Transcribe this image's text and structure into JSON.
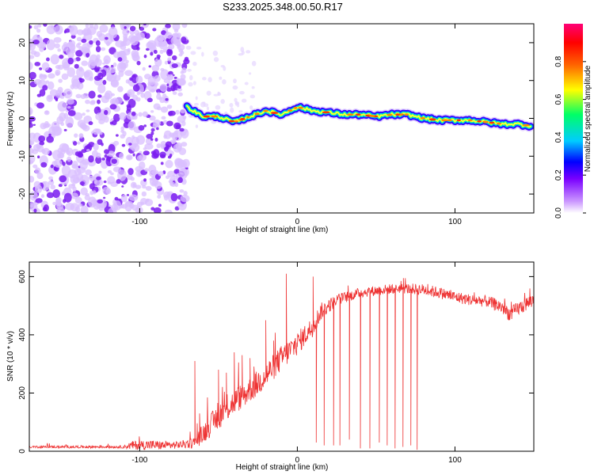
{
  "title": "S233.2025.348.00.50.R17",
  "colors": {
    "signal_line": "#ee3333",
    "scatter": "#7a2ef0",
    "axis": "#000000",
    "colorbar_stops": [
      "#cc99ff",
      "#7a00ff",
      "#0000ff",
      "#00ccff",
      "#00ff66",
      "#ffff00",
      "#ff6600",
      "#ff0000",
      "#ff0077"
    ]
  },
  "chart_data": [
    {
      "type": "heatmap",
      "xlabel": "Height of straight line (km)",
      "ylabel": "Frequency (Hz)",
      "xlim": [
        -170,
        150
      ],
      "ylim": [
        -25,
        25
      ],
      "x_ticks": [
        -100,
        0,
        100
      ],
      "x_tick_labels": [
        "-100",
        "0",
        "100"
      ],
      "y_ticks": [
        -20,
        -10,
        0,
        10,
        20
      ],
      "y_tick_labels": [
        "-20",
        "-10",
        "0",
        "10",
        "20"
      ],
      "noise_region_x": [
        -170,
        -70
      ],
      "ridge": {
        "x": [
          -70,
          -60,
          -50,
          -40,
          -30,
          -20,
          -10,
          0,
          10,
          20,
          30,
          40,
          50,
          60,
          70,
          80,
          90,
          100,
          110,
          120,
          130,
          140,
          148
        ],
        "y": [
          3,
          0.5,
          0.5,
          -1,
          0.5,
          2,
          1,
          3,
          2,
          1.5,
          1,
          1,
          0.5,
          1,
          1,
          0,
          -0.5,
          -0.5,
          -0.5,
          -1,
          -1.5,
          -1.5,
          -2
        ]
      },
      "colorbar": {
        "label": "Normalized spectral amplitude",
        "range": [
          0,
          1
        ],
        "ticks": [
          0.0,
          0.2,
          0.4,
          0.6,
          0.8
        ],
        "tick_labels": [
          "0.0",
          "0.2",
          "0.4",
          "0.6",
          "0.8"
        ]
      }
    },
    {
      "type": "line",
      "xlabel": "Height of straight line (km)",
      "ylabel": "SNR (10 * v/v)",
      "xlim": [
        -170,
        150
      ],
      "ylim": [
        0,
        650
      ],
      "x_ticks": [
        -100,
        0,
        100
      ],
      "x_tick_labels": [
        "-100",
        "0",
        "100"
      ],
      "y_ticks": [
        0,
        200,
        400,
        600
      ],
      "y_tick_labels": [
        "0",
        "200",
        "400",
        "600"
      ],
      "envelope": {
        "x": [
          -170,
          -110,
          -105,
          -95,
          -85,
          -75,
          -65,
          -60,
          -50,
          -40,
          -30,
          -20,
          -10,
          0,
          10,
          15,
          25,
          40,
          55,
          65,
          80,
          90,
          100,
          110,
          120,
          130,
          135,
          140,
          150
        ],
        "base": [
          15,
          15,
          20,
          22,
          20,
          22,
          30,
          60,
          120,
          170,
          210,
          260,
          320,
          370,
          430,
          480,
          520,
          545,
          555,
          560,
          555,
          545,
          530,
          520,
          515,
          495,
          470,
          490,
          520
        ],
        "spread": [
          8,
          10,
          30,
          35,
          30,
          25,
          40,
          70,
          90,
          90,
          90,
          90,
          90,
          80,
          70,
          60,
          40,
          35,
          35,
          35,
          40,
          40,
          40,
          40,
          40,
          50,
          50,
          50,
          50
        ]
      },
      "spikes": {
        "x": [
          -65,
          -62,
          -50,
          -45,
          -40,
          -35,
          -30,
          -20,
          -15,
          -7,
          3,
          10,
          12,
          17,
          23,
          27,
          33,
          40,
          46,
          52,
          57,
          62,
          67,
          72,
          76
        ],
        "y": [
          310,
          130,
          280,
          270,
          340,
          330,
          320,
          450,
          380,
          610,
          380,
          600,
          30,
          20,
          20,
          20,
          40,
          10,
          10,
          30,
          20,
          10,
          15,
          20,
          5
        ]
      }
    }
  ]
}
